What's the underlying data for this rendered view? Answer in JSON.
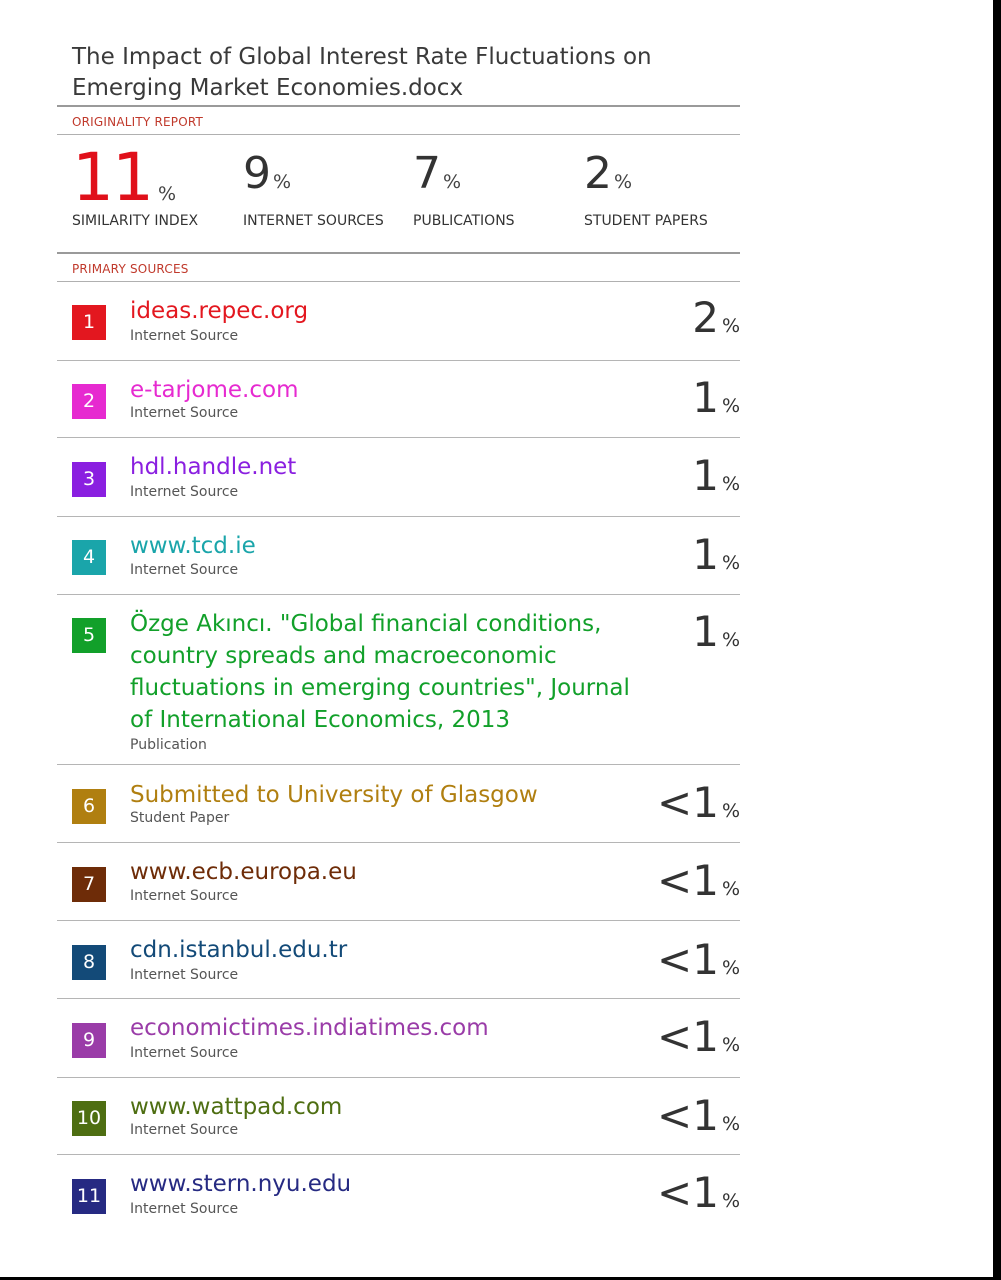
{
  "document": {
    "title": "The Impact of Global Interest Rate Fluctuations on Emerging Market Economies.docx"
  },
  "report": {
    "originality_label": "ORIGINALITY REPORT",
    "primary_sources_label": "PRIMARY SOURCES",
    "stats": [
      {
        "value": "11",
        "unit": "%",
        "label": "SIMILARITY INDEX"
      },
      {
        "value": "9",
        "unit": "%",
        "label": "INTERNET SOURCES"
      },
      {
        "value": "7",
        "unit": "%",
        "label": "PUBLICATIONS"
      },
      {
        "value": "2",
        "unit": "%",
        "label": "STUDENT PAPERS"
      }
    ]
  },
  "sources": [
    {
      "num": "1",
      "name": "ideas.repec.org",
      "type": "Internet Source",
      "percent": "2",
      "unit": "%",
      "color": "#e3171f"
    },
    {
      "num": "2",
      "name": "e-tarjome.com",
      "type": "Internet Source",
      "percent": "1",
      "unit": "%",
      "color": "#e62ad0"
    },
    {
      "num": "3",
      "name": "hdl.handle.net",
      "type": "Internet Source",
      "percent": "1",
      "unit": "%",
      "color": "#8a1fe0"
    },
    {
      "num": "4",
      "name": "www.tcd.ie",
      "type": "Internet Source",
      "percent": "1",
      "unit": "%",
      "color": "#1aa5aa"
    },
    {
      "num": "5",
      "name": "Özge Akıncı. \"Global financial conditions, country spreads and macroeconomic fluctuations in emerging countries\", Journal of International Economics, 2013",
      "type": "Publication",
      "percent": "1",
      "unit": "%",
      "color": "#12a02a"
    },
    {
      "num": "6",
      "name": "Submitted to University of Glasgow",
      "type": "Student Paper",
      "percent": "<1",
      "unit": "%",
      "color": "#b07f10"
    },
    {
      "num": "7",
      "name": "www.ecb.europa.eu",
      "type": "Internet Source",
      "percent": "<1",
      "unit": "%",
      "color": "#6e2c08"
    },
    {
      "num": "8",
      "name": "cdn.istanbul.edu.tr",
      "type": "Internet Source",
      "percent": "<1",
      "unit": "%",
      "color": "#134a78"
    },
    {
      "num": "9",
      "name": "economictimes.indiatimes.com",
      "type": "Internet Source",
      "percent": "<1",
      "unit": "%",
      "color": "#9a3ca8"
    },
    {
      "num": "10",
      "name": "www.wattpad.com",
      "type": "Internet Source",
      "percent": "<1",
      "unit": "%",
      "color": "#4e6e12"
    },
    {
      "num": "11",
      "name": "www.stern.nyu.edu",
      "type": "Internet Source",
      "percent": "<1",
      "unit": "%",
      "color": "#262a82"
    }
  ]
}
